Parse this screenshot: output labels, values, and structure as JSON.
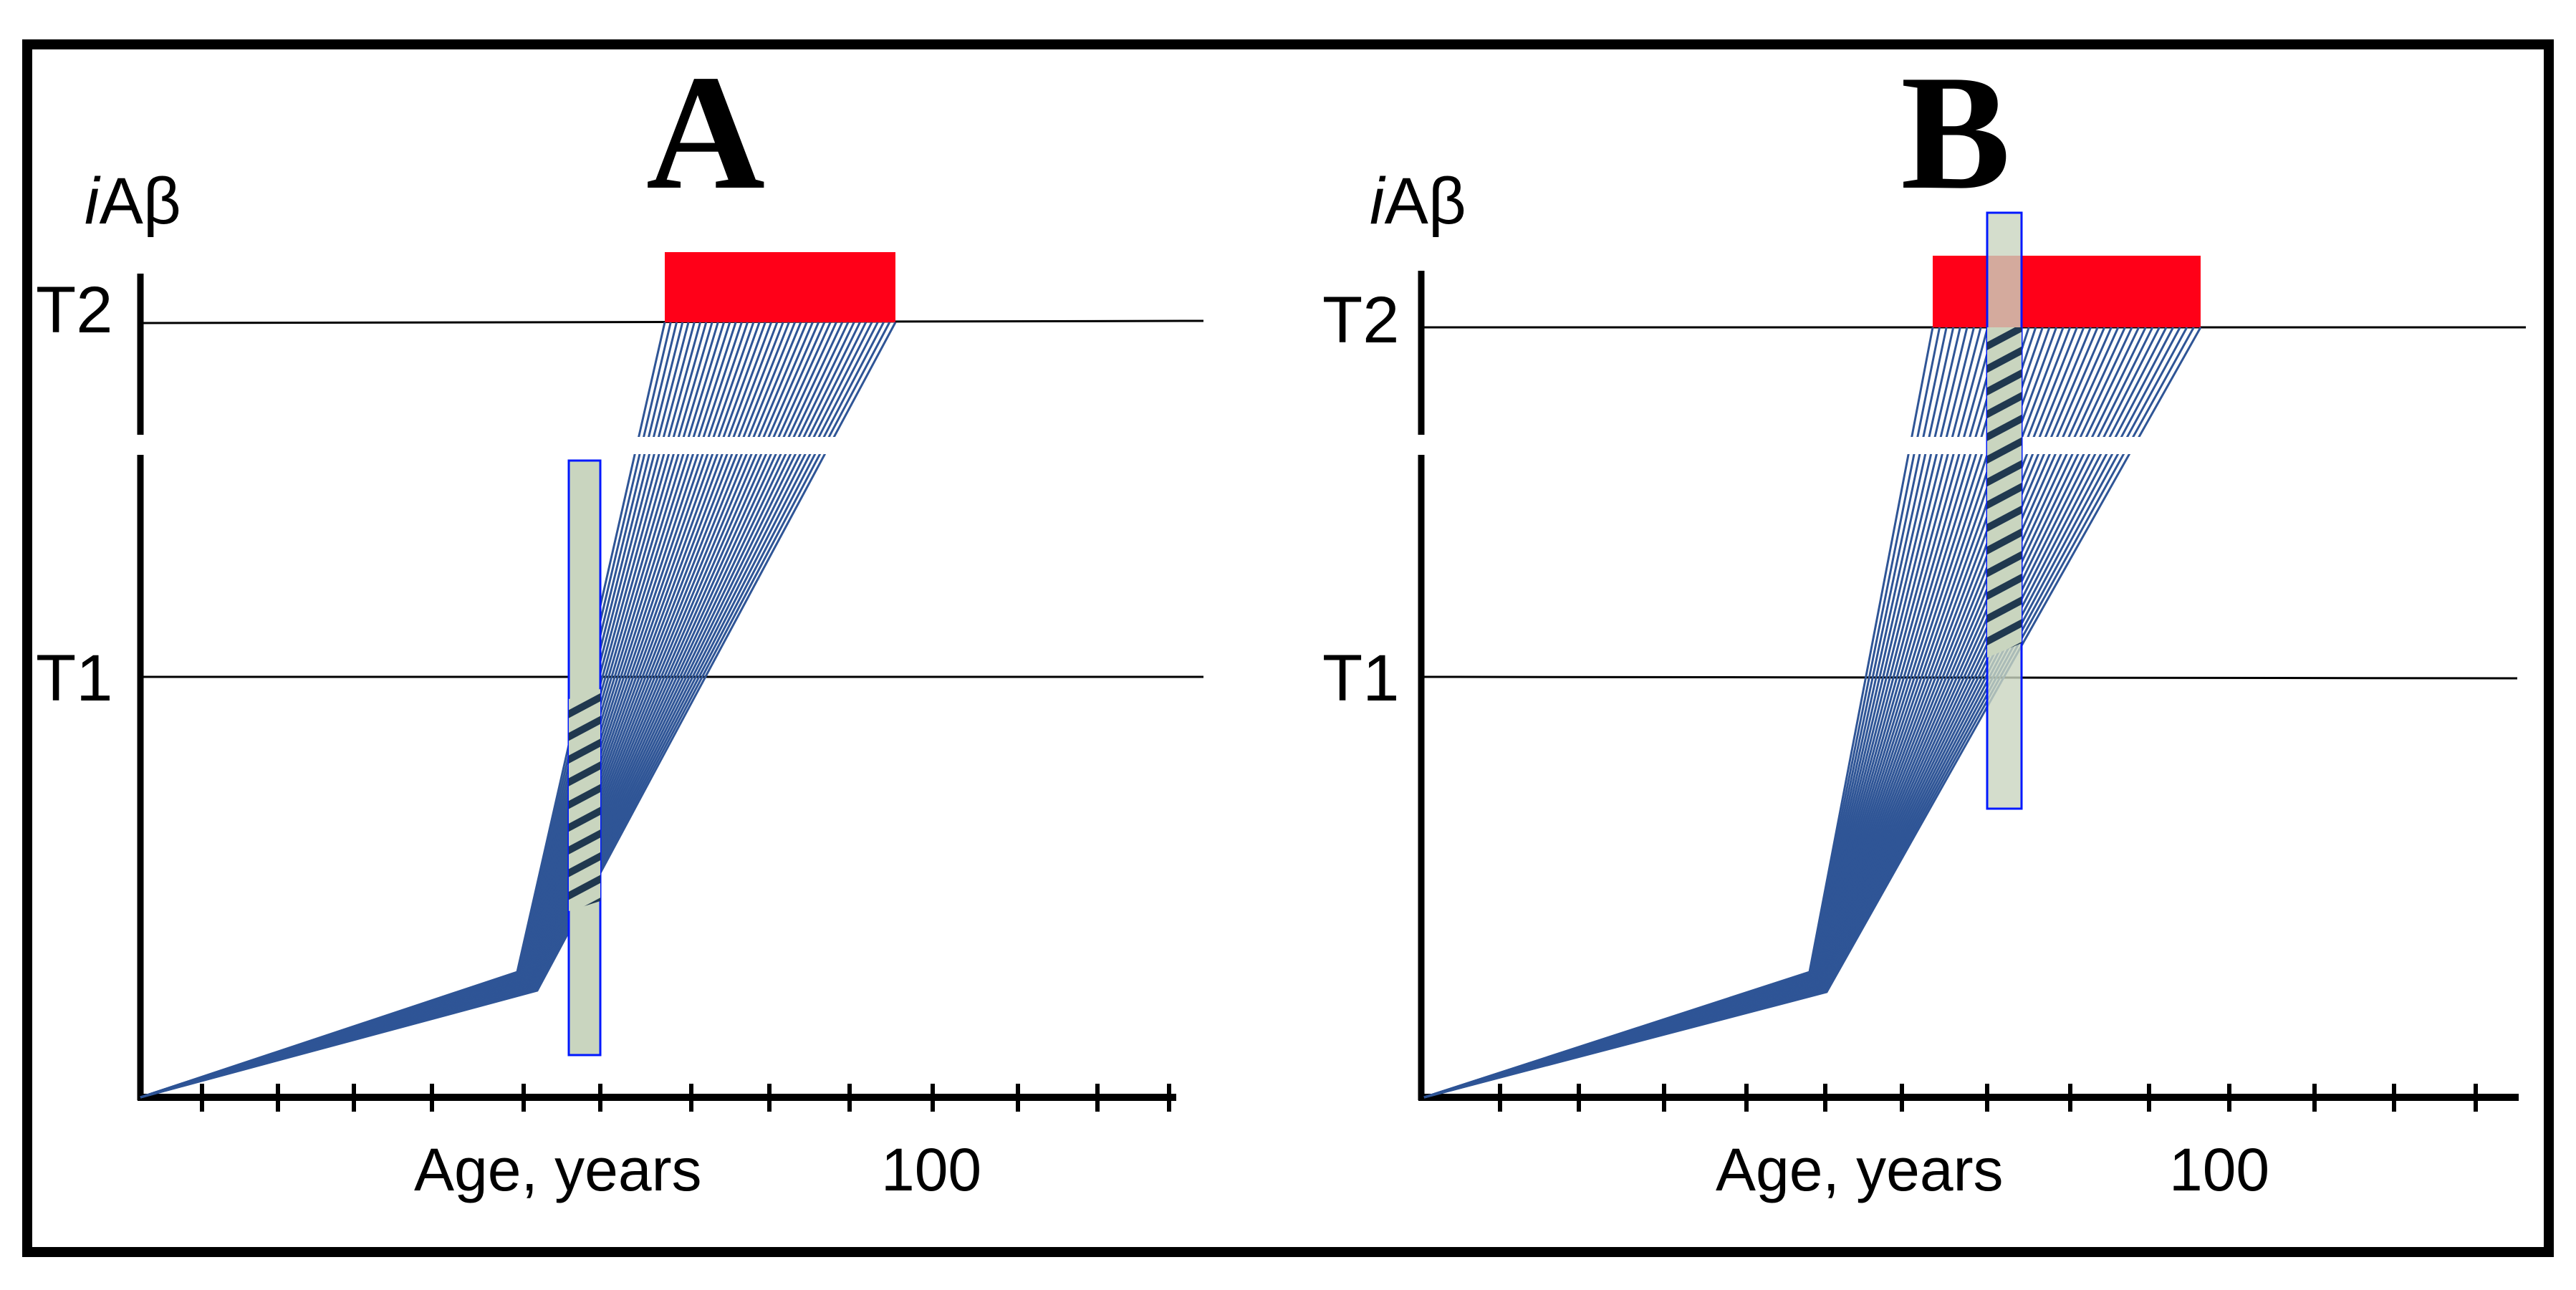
{
  "figure": {
    "colors": {
      "trajectory": "#2f5596",
      "threshold_band": "#ff0018",
      "intervention": "#c9d5bf",
      "intervention_border": "#0018ff",
      "axis": "#000000",
      "frame": "#000000"
    },
    "panels": [
      {
        "id": "A",
        "letter": "A",
        "y_label_prefix": "i",
        "y_label_main": "Aβ",
        "threshold_high": "T2",
        "threshold_low": "T1",
        "x_label": "Age, years",
        "x_tick_value": "100",
        "intervention_phase": "before T1 crossing"
      },
      {
        "id": "B",
        "letter": "B",
        "y_label_prefix": "i",
        "y_label_main": "Aβ",
        "threshold_high": "T2",
        "threshold_low": "T1",
        "x_label": "Age, years",
        "x_tick_value": "100",
        "intervention_phase": "after T1 crossing"
      }
    ]
  }
}
